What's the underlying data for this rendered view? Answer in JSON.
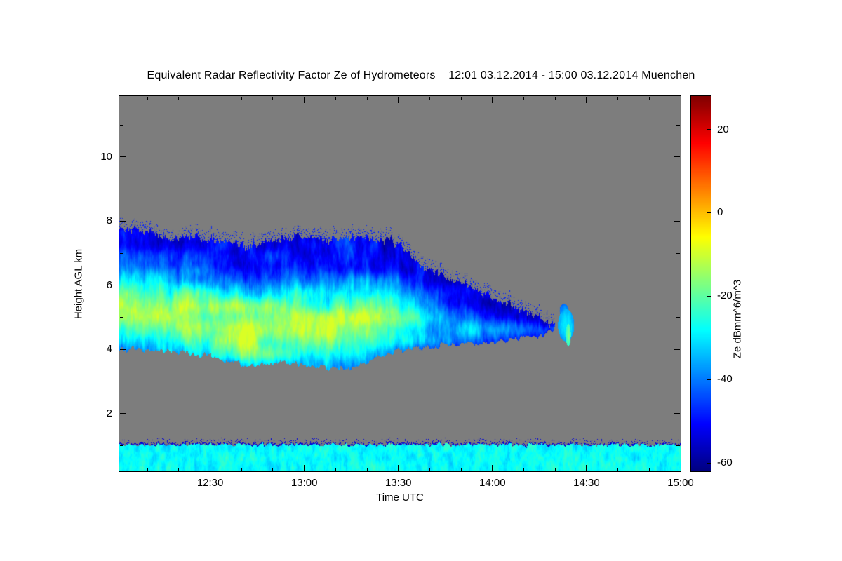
{
  "chart_data": {
    "type": "heatmap",
    "title": "Equivalent Radar Reflectivity Factor Ze of Hydrometeors    12:01 03.12.2014 - 15:00 03.12.2014 Muenchen",
    "xlabel": "Time UTC",
    "ylabel": "Height AGL km",
    "colorbar_label": "Ze dBmm^6/m^3",
    "station": "Muenchen",
    "time_start": "12:01 03.12.2014",
    "time_end": "15:00 03.12.2014",
    "x_range_minutes": [
      1,
      180
    ],
    "x_ticks": [
      {
        "minute": 30,
        "label": "12:30"
      },
      {
        "minute": 60,
        "label": "13:00"
      },
      {
        "minute": 90,
        "label": "13:30"
      },
      {
        "minute": 120,
        "label": "14:00"
      },
      {
        "minute": 150,
        "label": "14:30"
      },
      {
        "minute": 180,
        "label": "15:00"
      }
    ],
    "x_minor_step_minutes": 10,
    "y_range_km": [
      0.2,
      11.9
    ],
    "y_ticks": [
      {
        "km": 2,
        "label": "2"
      },
      {
        "km": 4,
        "label": "4"
      },
      {
        "km": 6,
        "label": "6"
      },
      {
        "km": 8,
        "label": "8"
      },
      {
        "km": 10,
        "label": "10"
      }
    ],
    "y_minor_km": [
      1,
      3,
      5,
      7,
      9,
      11
    ],
    "value_units": "dBmm^6/m^3",
    "value_range": [
      -62,
      28
    ],
    "colorbar_ticks": [
      {
        "value": 20,
        "label": "20"
      },
      {
        "value": 0,
        "label": "0"
      },
      {
        "value": -20,
        "label": "-20"
      },
      {
        "value": -40,
        "label": "-40"
      },
      {
        "value": -60,
        "label": "-60"
      }
    ],
    "colormap": "jet",
    "no_signal_color": "#7d7d7d",
    "sample_minutes": [
      0,
      6,
      12,
      18,
      24,
      30,
      36,
      42,
      48,
      54,
      60,
      66,
      72,
      78,
      84,
      90,
      96,
      102,
      108,
      114,
      120,
      126,
      132,
      138,
      144,
      150,
      156,
      162,
      168,
      174,
      180
    ],
    "cloud_top_km": [
      7.8,
      7.75,
      7.6,
      7.45,
      7.5,
      7.45,
      7.3,
      7.2,
      7.35,
      7.45,
      7.5,
      7.4,
      7.45,
      7.5,
      7.45,
      7.35,
      6.7,
      6.4,
      6.1,
      5.85,
      5.6,
      5.35,
      5.1,
      4.95,
      4.8,
      0,
      0,
      0,
      0,
      0,
      0
    ],
    "cloud_base_km": [
      4.0,
      4.0,
      3.95,
      3.9,
      3.85,
      3.8,
      3.6,
      3.5,
      3.55,
      3.6,
      3.5,
      3.45,
      3.4,
      3.55,
      3.75,
      3.95,
      4.05,
      4.1,
      4.15,
      4.2,
      4.25,
      4.3,
      4.35,
      4.45,
      4.5,
      0,
      0,
      0,
      0,
      0,
      0
    ],
    "cloud_core_dB": [
      -16,
      -14,
      -13,
      -12,
      -13,
      -14,
      -13,
      -12,
      -14,
      -13,
      -12,
      -13,
      -12,
      -14,
      -17,
      -22,
      -27,
      -31,
      -34,
      -37,
      -39,
      -41,
      -43,
      -45,
      -46,
      -60,
      -60,
      -60,
      -60,
      -60,
      -60
    ],
    "cloud_end_minute": 140,
    "surface_layer": {
      "base_km": 0.2,
      "top_km": 1.02,
      "mean_dB": -28,
      "variation_dB": 13
    },
    "isolated_cells": [
      {
        "t_min": 143.5,
        "h_km": 4.75,
        "rt_min": 2.6,
        "rh_km": 0.5,
        "dB": -36
      },
      {
        "t_min": 142.8,
        "h_km": 5.2,
        "rt_min": 1.4,
        "rh_km": 0.22,
        "dB": -42
      },
      {
        "t_min": 144.2,
        "h_km": 4.45,
        "rt_min": 0.8,
        "rh_km": 0.35,
        "dB": -24
      }
    ]
  }
}
